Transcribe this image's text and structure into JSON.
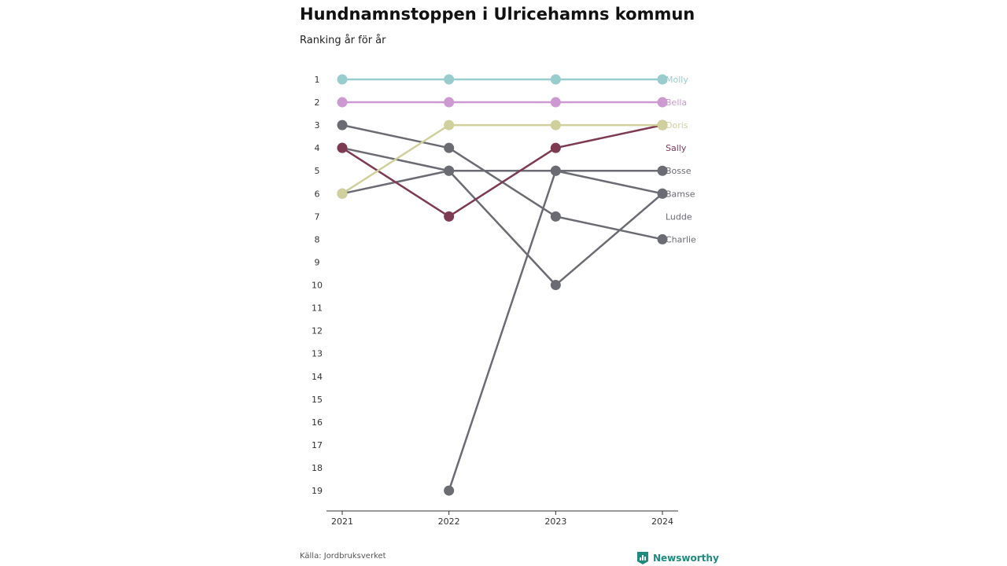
{
  "header": {
    "title": "Hundnamnstoppen i Ulricehamns kommun",
    "subtitle": "Ranking år för år"
  },
  "footer": {
    "source": "Källa: Jordbruksverket",
    "brand": "Newsworthy",
    "brand_color": "#1f8a7e"
  },
  "chart_data": {
    "type": "line",
    "x": [
      "2021",
      "2022",
      "2023",
      "2024"
    ],
    "y_ticks": [
      1,
      2,
      3,
      4,
      5,
      6,
      7,
      8,
      9,
      10,
      11,
      12,
      13,
      14,
      15,
      16,
      17,
      18,
      19
    ],
    "ylim": [
      1,
      19
    ],
    "y_reversed": true,
    "grid": false,
    "legend": "labels at end of lines",
    "series": [
      {
        "name": "Charlie",
        "color": "#6b6b73",
        "values": [
          3,
          4,
          7,
          8
        ]
      },
      {
        "name": "Ludde",
        "color": "#6b6b73",
        "values": [
          4,
          5,
          10,
          6
        ]
      },
      {
        "name": "Bamse",
        "color": "#6b6b73",
        "values": [
          6,
          5,
          5,
          6
        ]
      },
      {
        "name": "Bosse",
        "color": "#6b6b73",
        "values": [
          null,
          19,
          5,
          5
        ]
      },
      {
        "name": "Sally",
        "color": "#7d3a52",
        "values": [
          4,
          7,
          4,
          3
        ]
      },
      {
        "name": "Doris",
        "color": "#cfd09c",
        "values": [
          6,
          3,
          3,
          3
        ]
      },
      {
        "name": "Bella",
        "color": "#cc99d1",
        "values": [
          2,
          2,
          2,
          2
        ]
      },
      {
        "name": "Molly",
        "color": "#99cccc",
        "values": [
          1,
          1,
          1,
          1
        ]
      }
    ],
    "end_labels": [
      {
        "name": "Molly",
        "color": "#99cccc"
      },
      {
        "name": "Bella",
        "color": "#cc99d1"
      },
      {
        "name": "Doris",
        "color": "#cfd09c"
      },
      {
        "name": "Sally",
        "color": "#7d3a52"
      },
      {
        "name": "Bosse",
        "color": "#6b6b73"
      },
      {
        "name": "Bamse",
        "color": "#6b6b73"
      },
      {
        "name": "Ludde",
        "color": "#6b6b73"
      },
      {
        "name": "Charlie",
        "color": "#6b6b73"
      }
    ]
  }
}
